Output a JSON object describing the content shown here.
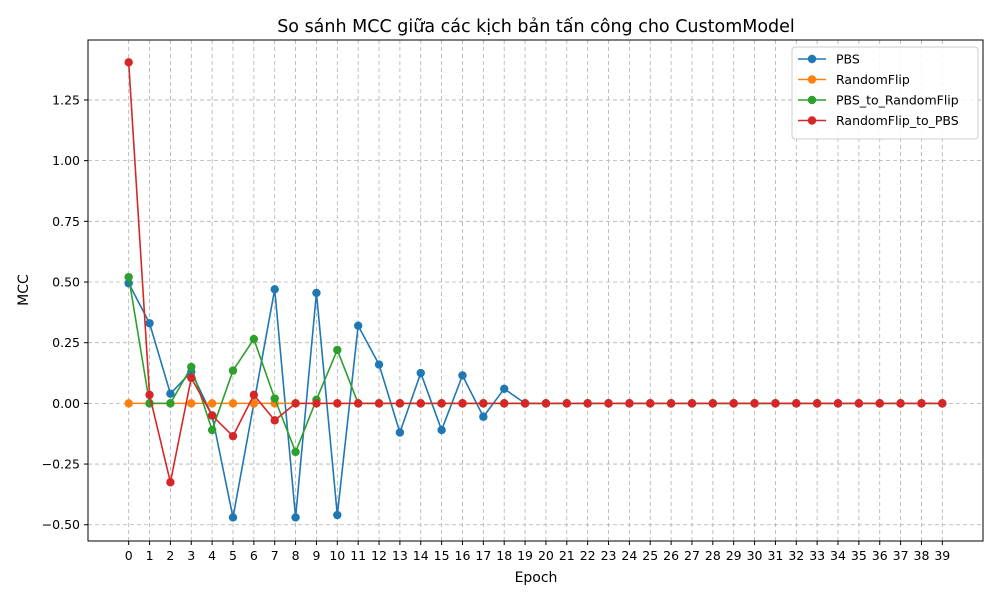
{
  "chart_data": {
    "type": "line",
    "title": "So sánh MCC giữa các kịch bản tấn công cho CustomModel",
    "xlabel": "Epoch",
    "ylabel": "MCC",
    "x": [
      0,
      1,
      2,
      3,
      4,
      5,
      6,
      7,
      8,
      9,
      10,
      11,
      12,
      13,
      14,
      15,
      16,
      17,
      18,
      19,
      20,
      21,
      22,
      23,
      24,
      25,
      26,
      27,
      28,
      29,
      30,
      31,
      32,
      33,
      34,
      35,
      36,
      37,
      38,
      39
    ],
    "xlim": [
      -1.95,
      40.95
    ],
    "ylim": [
      -0.567,
      1.497
    ],
    "yticks": [
      -0.5,
      -0.25,
      0.0,
      0.25,
      0.5,
      0.75,
      1.0,
      1.25
    ],
    "ytick_labels": [
      "−0.50",
      "−0.25",
      "0.00",
      "0.25",
      "0.50",
      "0.75",
      "1.00",
      "1.25"
    ],
    "grid": true,
    "legend_position": "top-right",
    "series": [
      {
        "name": "PBS",
        "color": "#1f77b4",
        "values": [
          0.495,
          0.33,
          0.04,
          0.13,
          -0.05,
          -0.47,
          0.0,
          0.47,
          -0.47,
          0.455,
          -0.46,
          0.32,
          0.16,
          -0.12,
          0.125,
          -0.11,
          0.115,
          -0.055,
          0.06,
          0.0,
          0.0,
          0.0,
          0.0,
          0.0,
          0.0,
          0.0,
          0.0,
          0.0,
          0.0,
          0.0,
          0.0,
          0.0,
          0.0,
          0.0,
          0.0,
          0.0,
          0.0,
          0.0,
          0.0,
          0.0
        ]
      },
      {
        "name": "RandomFlip",
        "color": "#ff7f0e",
        "values": [
          0.0,
          0.0,
          0.0,
          0.0,
          0.0,
          0.0,
          0.0,
          0.0,
          0.0,
          0.0,
          0.0,
          0.0,
          0.0,
          0.0,
          0.0,
          0.0,
          0.0,
          0.0,
          0.0,
          0.0,
          0.0,
          0.0,
          0.0,
          0.0,
          0.0,
          0.0,
          0.0,
          0.0,
          0.0,
          0.0,
          0.0,
          0.0,
          0.0,
          0.0,
          0.0,
          0.0,
          0.0,
          0.0,
          0.0,
          0.0
        ]
      },
      {
        "name": "PBS_to_RandomFlip",
        "color": "#2ca02c",
        "values": [
          0.52,
          0.0,
          0.0,
          0.15,
          -0.11,
          0.135,
          0.265,
          0.02,
          -0.2,
          0.015,
          0.22,
          0.0,
          0.0,
          0.0,
          0.0,
          0.0,
          0.0,
          0.0,
          0.0,
          0.0,
          0.0,
          0.0,
          0.0,
          0.0,
          0.0,
          0.0,
          0.0,
          0.0,
          0.0,
          0.0,
          0.0,
          0.0,
          0.0,
          0.0,
          0.0,
          0.0,
          0.0,
          0.0,
          0.0,
          0.0
        ]
      },
      {
        "name": "RandomFlip_to_PBS",
        "color": "#d62728",
        "values": [
          1.405,
          0.035,
          -0.325,
          0.105,
          -0.05,
          -0.135,
          0.035,
          -0.07,
          0.0,
          0.0,
          0.0,
          0.0,
          0.0,
          0.0,
          0.0,
          0.0,
          0.0,
          0.0,
          0.0,
          0.0,
          0.0,
          0.0,
          0.0,
          0.0,
          0.0,
          0.0,
          0.0,
          0.0,
          0.0,
          0.0,
          0.0,
          0.0,
          0.0,
          0.0,
          0.0,
          0.0,
          0.0,
          0.0,
          0.0,
          0.0
        ]
      }
    ]
  }
}
